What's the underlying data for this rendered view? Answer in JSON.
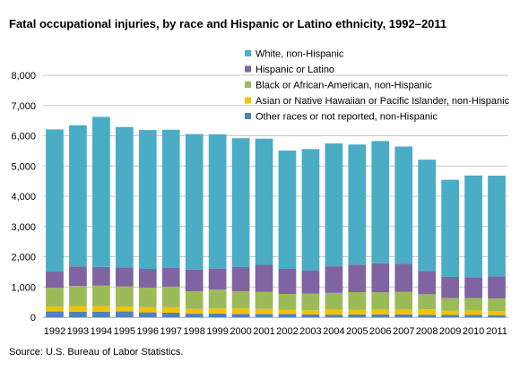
{
  "chart_data": {
    "type": "bar",
    "stacked": true,
    "title": "Fatal occupational injuries, by race and Hispanic or Latino ethnicity, 1992–2011",
    "source": "Source: U.S. Bureau of Labor Statistics.",
    "xlabel": "",
    "ylabel": "",
    "ylim": [
      0,
      8000
    ],
    "yticks": [
      0,
      1000,
      2000,
      3000,
      4000,
      5000,
      6000,
      7000,
      8000
    ],
    "ytick_labels": [
      "0",
      "1,000",
      "2,000",
      "3,000",
      "4,000",
      "5,000",
      "6,000",
      "7,000",
      "8,000"
    ],
    "grid": true,
    "legend_position": "top-right",
    "categories": [
      "1992",
      "1993",
      "1994",
      "1995",
      "1996",
      "1997",
      "1998",
      "1999",
      "2000",
      "2001",
      "2002",
      "2003",
      "2004",
      "2005",
      "2006",
      "2007",
      "2008",
      "2009",
      "2010",
      "2011"
    ],
    "series": [
      {
        "name": "Other races or not reported, non-Hispanic",
        "color": "#4F81BD",
        "values": [
          190,
          180,
          185,
          190,
          160,
          150,
          115,
          120,
          110,
          105,
          110,
          90,
          85,
          90,
          95,
          95,
          80,
          75,
          75,
          70
        ]
      },
      {
        "name": "Asian or Native Hawaiian or Pacific Islander, non-Hispanic",
        "color": "#F2C200",
        "values": [
          160,
          190,
          180,
          160,
          170,
          180,
          160,
          170,
          180,
          170,
          140,
          140,
          170,
          160,
          160,
          160,
          180,
          140,
          150,
          130
        ]
      },
      {
        "name": "Black or African-American, non-Hispanic",
        "color": "#9BBB59",
        "values": [
          620,
          660,
          680,
          670,
          650,
          680,
          580,
          620,
          570,
          560,
          520,
          550,
          550,
          580,
          570,
          580,
          500,
          420,
          410,
          420
        ]
      },
      {
        "name": "Hispanic or Latino",
        "color": "#8064A2",
        "values": [
          550,
          650,
          620,
          630,
          620,
          620,
          720,
          700,
          800,
          900,
          830,
          770,
          880,
          910,
          960,
          930,
          770,
          700,
          690,
          730
        ]
      },
      {
        "name": "White, non-Hispanic",
        "color": "#4BACC6",
        "values": [
          4690,
          4670,
          4960,
          4640,
          4590,
          4570,
          4480,
          4440,
          4260,
          4170,
          3910,
          4010,
          4060,
          3970,
          4040,
          3880,
          3680,
          3210,
          3360,
          3330
        ]
      }
    ],
    "legend_order": [
      4,
      3,
      2,
      1,
      0
    ]
  }
}
